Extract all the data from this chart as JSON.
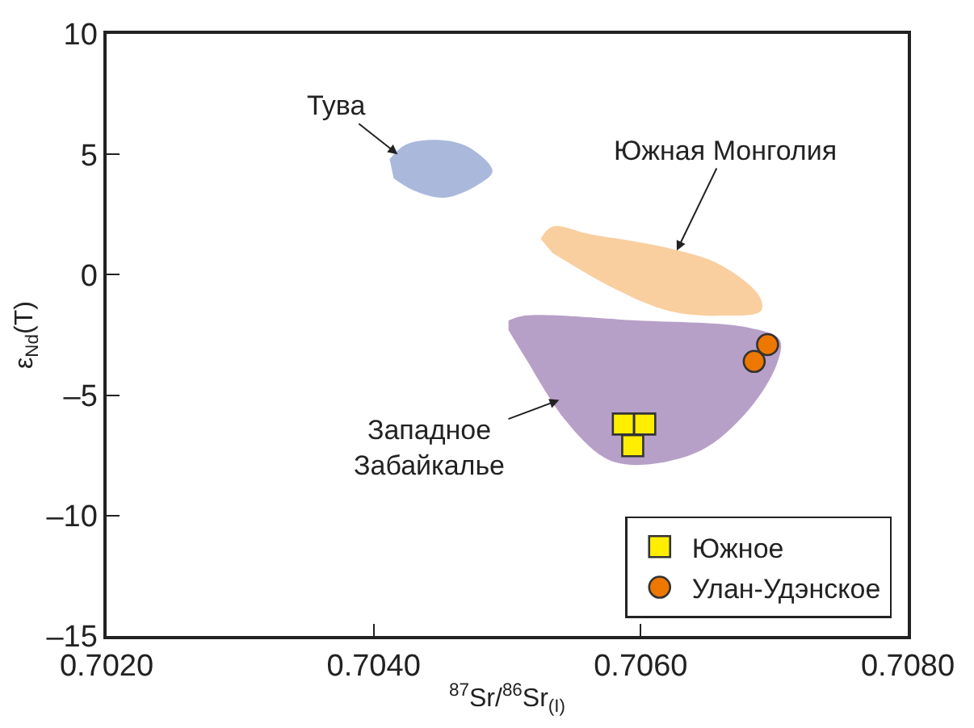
{
  "chart_data": {
    "type": "scatter",
    "xlabel": "$^{87}$Sr/$^{86}$Sr$_{(I)}$",
    "ylabel": "ε$_{Nd}$(T)",
    "xlim": [
      0.702,
      0.708
    ],
    "xticks": [
      {
        "value": 0.702,
        "label": "0.7020"
      },
      {
        "value": 0.704,
        "label": "0.7040"
      },
      {
        "value": 0.706,
        "label": "0.7060"
      },
      {
        "value": 0.708,
        "label": "0.7080"
      }
    ],
    "ylim": [
      -15,
      10
    ],
    "yticks": [
      {
        "value": -15,
        "label": "–15"
      },
      {
        "value": -10,
        "label": "–10"
      },
      {
        "value": -5,
        "label": "–5"
      },
      0,
      5,
      10
    ],
    "legend": "bottom right",
    "series": [
      {
        "type": "area",
        "color": "#aab8dc",
        "x": [
          0.70412,
          0.70424,
          0.70447,
          0.70471,
          0.70489,
          0.70477,
          0.70453,
          0.7043,
          0.70415
        ],
        "values": [
          4.8,
          5.4,
          5.6,
          5.3,
          4.3,
          3.7,
          3.2,
          3.5,
          4.0
        ]
      },
      {
        "type": "area",
        "color": "#f9cf9f",
        "x": [
          0.70525,
          0.70534,
          0.70561,
          0.70621,
          0.7066,
          0.70689,
          0.7069,
          0.7066,
          0.70621,
          0.70581,
          0.70534
        ],
        "values": [
          1.5,
          2.0,
          1.7,
          1.1,
          0.4,
          -0.9,
          -1.5,
          -1.7,
          -1.5,
          -0.6,
          0.9
        ]
      },
      {
        "type": "area",
        "color": "#b7a0c8",
        "x": [
          0.70501,
          0.70513,
          0.70597,
          0.70681,
          0.70704,
          0.70702,
          0.70681,
          0.70645,
          0.70597,
          0.70573,
          0.70543,
          0.70513,
          0.70501
        ],
        "values": [
          -1.9,
          -1.7,
          -1.9,
          -2.2,
          -2.7,
          -3.7,
          -5.6,
          -7.3,
          -7.9,
          -7.6,
          -6.0,
          -3.4,
          -2.3
        ]
      },
      {
        "name": "Южное",
        "color": "#ffee00",
        "marker": "square",
        "x": [
          0.70587,
          0.70603,
          0.70594
        ],
        "values": [
          -6.2,
          -6.2,
          -7.1
        ]
      },
      {
        "name": "Улан-Удэнское",
        "color": "#ee7700",
        "marker": "circle",
        "x": [
          0.70695,
          0.70685
        ],
        "values": [
          -2.9,
          -3.6
        ]
      }
    ],
    "annotations": [
      {
        "text": "Тува",
        "x": 0.70418,
        "y": 5.0
      },
      {
        "text": "Южная Монголия",
        "x": 0.70627,
        "y": 1.0
      },
      {
        "text": "Западное\nЗабайкалье",
        "x": 0.70539,
        "y": -5.2
      }
    ]
  }
}
